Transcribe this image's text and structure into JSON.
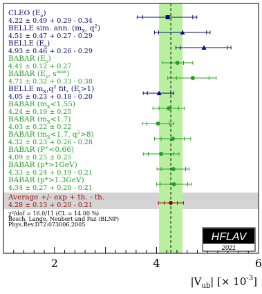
{
  "chart_data": {
    "type": "scatter",
    "subtype": "forest-plot",
    "x_axis": {
      "label_main": "|V",
      "label_sub": "ub",
      "label_bracket_open": "|  [× 10",
      "label_exp": "-3",
      "label_bracket_close": "]",
      "range": [
        1,
        6
      ],
      "ticks": [
        {
          "value": 2,
          "label": "2"
        },
        {
          "value": 4,
          "label": "4"
        },
        {
          "value": 6,
          "label": "6"
        }
      ]
    },
    "average": {
      "value": 4.28,
      "band": [
        4.05,
        4.51
      ],
      "name": "Average +/- exp + th. - th.",
      "text": "4.28 ± 0.13 + 0.20 - 0.21",
      "exp_err": [
        0.13,
        0.13
      ],
      "tot_err": [
        0.24,
        0.25
      ]
    },
    "measurements": [
      {
        "name_main": "CLEO (E",
        "name_sub": "e",
        "name_tail": ")",
        "name_sup": "",
        "name_after": "",
        "text": "4.22 ± 0.49 + 0.29 - 0.34",
        "value": 4.22,
        "exp_err": [
          0.49,
          0.49
        ],
        "tot_err": [
          0.6,
          0.57
        ],
        "color": "#0a0a7a",
        "marker": "square"
      },
      {
        "name_main": "BELLE sim. ann. (m",
        "name_sub": "X",
        "name_tail": ", q",
        "name_sup": "2",
        "name_after": ")",
        "text": "4.51 ± 0.47 + 0.27 - 0.29",
        "value": 4.51,
        "exp_err": [
          0.47,
          0.47
        ],
        "tot_err": [
          0.55,
          0.54
        ],
        "color": "#0a0a7a",
        "marker": "triangle"
      },
      {
        "name_main": "BELLE (E",
        "name_sub": "e",
        "name_tail": ")",
        "name_sup": "",
        "name_after": "",
        "text": "4.93 ± 0.46 + 0.26 - 0.29",
        "value": 4.93,
        "exp_err": [
          0.46,
          0.46
        ],
        "tot_err": [
          0.55,
          0.53
        ],
        "color": "#0a0a7a",
        "marker": "triangle"
      },
      {
        "name_main": "BABAR (E",
        "name_sub": "e",
        "name_tail": ")",
        "name_sup": "",
        "name_after": "",
        "text": "4.41 ± 0.12 + 0.27",
        "value": 4.41,
        "exp_err": [
          0.12,
          0.12
        ],
        "tot_err": [
          0.3,
          0.3
        ],
        "color": "#22a022",
        "marker": "circle"
      },
      {
        "name_main": "BABAR (E",
        "name_sub": "e",
        "name_tail": ", s",
        "name_sup": "max",
        "name_after": ")",
        "text": "4.71 ± 0.32 + 0.33 - 0.38",
        "value": 4.71,
        "exp_err": [
          0.32,
          0.32
        ],
        "tot_err": [
          0.49,
          0.46
        ],
        "color": "#22a022",
        "marker": "circle"
      },
      {
        "name_main": "BELLE m",
        "name_sub": "X",
        "name_tail": ",q",
        "name_sup": "2",
        "name_after": " fit, (E",
        "name_sub2": "l",
        "name_after2": ">1)",
        "text": "4.05 ± 0.23 + 0.18 - 0.20",
        "value": 4.05,
        "exp_err": [
          0.23,
          0.23
        ],
        "tot_err": [
          0.31,
          0.29
        ],
        "color": "#0a0a7a",
        "marker": "triangle"
      },
      {
        "name_main": "BABAR (m",
        "name_sub": "X",
        "name_tail": "<1.55)",
        "name_sup": "",
        "name_after": "",
        "text": "4.24 ± 0.19 ± 0.25",
        "value": 4.24,
        "exp_err": [
          0.19,
          0.19
        ],
        "tot_err": [
          0.31,
          0.31
        ],
        "color": "#22a022",
        "marker": "circle"
      },
      {
        "name_main": "BABAR (m",
        "name_sub": "X",
        "name_tail": "<1.7)",
        "name_sup": "",
        "name_after": "",
        "text": "4.03 ± 0.22 ± 0.22",
        "value": 4.03,
        "exp_err": [
          0.22,
          0.22
        ],
        "tot_err": [
          0.31,
          0.31
        ],
        "color": "#22a022",
        "marker": "circle"
      },
      {
        "name_main": "BABAR (m",
        "name_sub": "X",
        "name_tail": "<1.7, q",
        "name_sup": "2",
        "name_after": ">8)",
        "text": "4.32 ± 0.23 + 0.26 - 0.28",
        "value": 4.32,
        "exp_err": [
          0.23,
          0.23
        ],
        "tot_err": [
          0.36,
          0.35
        ],
        "color": "#22a022",
        "marker": "circle"
      },
      {
        "name_main": "BABAR (P",
        "name_sub": "",
        "name_tail": "",
        "name_sup": "+",
        "name_after": "<0.66)",
        "text": "4.09 ± 0.25 ± 0.25",
        "value": 4.09,
        "exp_err": [
          0.25,
          0.25
        ],
        "tot_err": [
          0.35,
          0.35
        ],
        "color": "#22a022",
        "marker": "circle"
      },
      {
        "name_main": "BABAR (p*>1GeV)",
        "name_sub": "",
        "name_tail": "",
        "name_sup": "",
        "name_after": "",
        "text": "4.33 ± 0.24 + 0.19 - 0.21",
        "value": 4.33,
        "exp_err": [
          0.24,
          0.24
        ],
        "tot_err": [
          0.32,
          0.31
        ],
        "color": "#22a022",
        "marker": "circle"
      },
      {
        "name_main": "BABAR (p*>1.3GeV)",
        "name_sub": "",
        "name_tail": "",
        "name_sup": "",
        "name_after": "",
        "text": "4.34 ± 0.27 + 0.20 - 0.21",
        "value": 4.34,
        "exp_err": [
          0.27,
          0.27
        ],
        "tot_err": [
          0.34,
          0.34
        ],
        "color": "#22a022",
        "marker": "circle"
      }
    ],
    "footnote": {
      "chi2": "χ²/dof = 16.0/11 (CL = 14.00 %)",
      "authors": "Bosch, Lange, Neubert and Paz (BLNP)",
      "ref": "Phys.Rev.D72:073006,2005"
    },
    "logo": {
      "text": "HFLAV",
      "year": "2021"
    },
    "colors": {
      "band": "#b8f0a0",
      "avg_row_bg": "#d4d4d4",
      "avg_color": "#a01010",
      "frame": "#000000"
    },
    "grid": false
  }
}
